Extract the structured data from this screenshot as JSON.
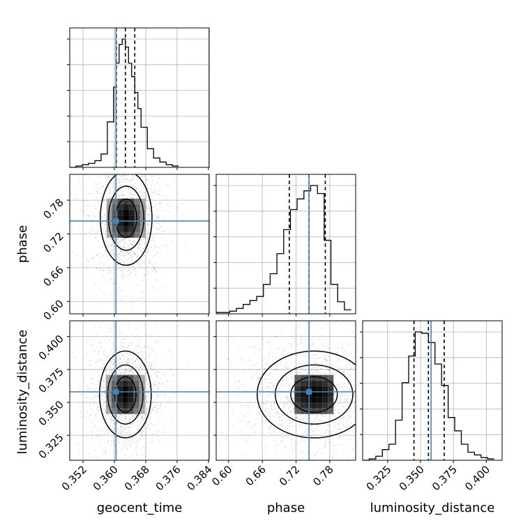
{
  "colors": {
    "truth": "#4682b4",
    "hist": "#000000",
    "quantile": "#000000",
    "grid": "#b0b0b0",
    "density_dark": "#000000",
    "density_light": "#f2f2f2"
  },
  "chart_data": {
    "type": "corner",
    "parameters": [
      "geocent_time",
      "phase",
      "luminosity_distance"
    ],
    "truths": {
      "geocent_time": 0.3604,
      "phase": 0.743,
      "luminosity_distance": 0.358
    },
    "quantiles": {
      "geocent_time": [
        0.3605,
        0.3628,
        0.3652
      ],
      "phase": [
        0.708,
        0.743,
        0.772
      ],
      "luminosity_distance": [
        0.345,
        0.356,
        0.368
      ]
    },
    "ranges": {
      "geocent_time": [
        0.3486,
        0.3842
      ],
      "phase": [
        0.578,
        0.826
      ],
      "luminosity_distance": [
        0.306,
        0.412
      ]
    },
    "ticks": {
      "geocent_time": [
        "0.352",
        "0.360",
        "0.368",
        "0.376",
        "0.384"
      ],
      "phase": [
        "0.60",
        "0.66",
        "0.72",
        "0.78"
      ],
      "luminosity_distance": [
        "0.325",
        "0.350",
        "0.375",
        "0.400"
      ]
    },
    "marginals": {
      "geocent_time": {
        "bin_edges": [
          0.3486,
          0.3502,
          0.3518,
          0.3534,
          0.355,
          0.3566,
          0.3582,
          0.3598,
          0.3604,
          0.3612,
          0.362,
          0.3628,
          0.3636,
          0.3644,
          0.3652,
          0.366,
          0.3668,
          0.3684,
          0.37,
          0.3716,
          0.3732,
          0.3748,
          0.3764
        ],
        "counts": [
          0,
          1,
          2,
          3,
          5,
          10,
          34,
          60,
          78,
          92,
          96,
          90,
          78,
          68,
          56,
          44,
          30,
          14,
          7,
          4,
          2,
          1
        ]
      },
      "phase": {
        "bin_edges": [
          0.578,
          0.59,
          0.602,
          0.614,
          0.626,
          0.638,
          0.65,
          0.662,
          0.674,
          0.686,
          0.698,
          0.71,
          0.722,
          0.734,
          0.746,
          0.758,
          0.77,
          0.782,
          0.794,
          0.806,
          0.818
        ],
        "counts": [
          1,
          1,
          2,
          4,
          7,
          10,
          13,
          22,
          30,
          45,
          63,
          78,
          86,
          92,
          96,
          90,
          55,
          22,
          9,
          3
        ]
      },
      "luminosity_distance": {
        "bin_edges": [
          0.306,
          0.311,
          0.316,
          0.321,
          0.326,
          0.331,
          0.336,
          0.341,
          0.346,
          0.351,
          0.356,
          0.361,
          0.366,
          0.371,
          0.376,
          0.381,
          0.386,
          0.391,
          0.396,
          0.401,
          0.406
        ],
        "counts": [
          0,
          1,
          3,
          8,
          12,
          30,
          58,
          78,
          96,
          95,
          88,
          72,
          56,
          32,
          22,
          12,
          6,
          4,
          2,
          1
        ]
      }
    },
    "panels": [
      {
        "x": "geocent_time",
        "y": "phase",
        "center": [
          0.363,
          0.748
        ],
        "sigma": [
          0.003,
          0.038
        ]
      },
      {
        "x": "geocent_time",
        "y": "luminosity_distance",
        "center": [
          0.3628,
          0.356
        ],
        "sigma": [
          0.003,
          0.015
        ]
      },
      {
        "x": "phase",
        "y": "luminosity_distance",
        "center": [
          0.752,
          0.356
        ],
        "sigma": [
          0.046,
          0.015
        ]
      }
    ]
  }
}
